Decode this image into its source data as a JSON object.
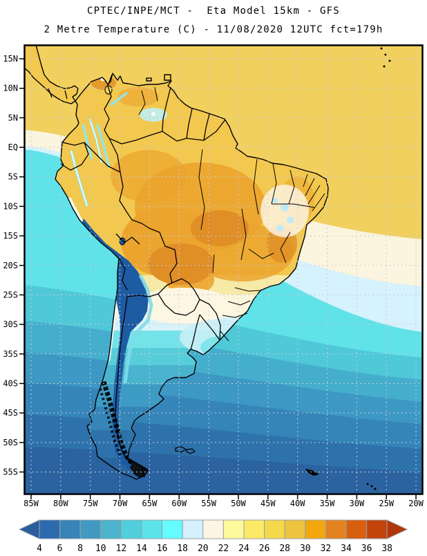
{
  "header": {
    "line1": "CPTEC/INPE/MCT -  Eta Model 15km - GFS",
    "line2": "2 Metre Temperature (C) - 11/08/2020 12UTC fct=179h"
  },
  "axes": {
    "lat_labels": [
      "15N",
      "10N",
      "5N",
      "EQ",
      "5S",
      "10S",
      "15S",
      "20S",
      "25S",
      "30S",
      "35S",
      "40S",
      "45S",
      "50S",
      "55S"
    ],
    "lon_labels": [
      "85W",
      "80W",
      "75W",
      "70W",
      "65W",
      "60W",
      "55W",
      "50W",
      "45W",
      "40W",
      "35W",
      "30W",
      "25W",
      "20W"
    ]
  },
  "colorbar": {
    "units": "C",
    "tick_labels": [
      "4",
      "6",
      "8",
      "10",
      "12",
      "14",
      "16",
      "18",
      "20",
      "22",
      "24",
      "26",
      "28",
      "30",
      "32",
      "34",
      "36",
      "38"
    ],
    "segment_colors": [
      "#2d6aad",
      "#3784b8",
      "#429ac2",
      "#4cb4cc",
      "#52cfdd",
      "#5ce3ea",
      "#66fbff",
      "#d4f1fd",
      "#fdf5e3",
      "#fdfa9d",
      "#fbe968",
      "#f5d94d",
      "#eec33e",
      "#f2a80d",
      "#e2831f",
      "#d85f10",
      "#c2440a"
    ],
    "left_arrow_color": "#2a5d9c",
    "right_arrow_color": "#b03808",
    "cell_border": "#9aa0a6"
  },
  "colors": {
    "ocean_bands": [
      "#f1d05e",
      "#fbf4de",
      "#d6f2fc",
      "#5fe2e8",
      "#4fc8d8",
      "#45aecd",
      "#3d98c3",
      "#3585b8",
      "#2e72ab",
      "#2a639f"
    ],
    "land_bands": [
      "#f3c84e",
      "#f7e9a6",
      "#fbf5dd",
      "#d9f3f8",
      "#74e3e9",
      "#58cdda",
      "#4ab4cf",
      "#3e9bc4",
      "#3585b7",
      "#2e72ab",
      "#2a64a1"
    ],
    "land_orange": "#eba42e",
    "land_orange_deep": "#e08e26",
    "andes_dark": "#1d5ba2",
    "andes_fringe": "#7fdce8",
    "snow_white": "#f2fbfb",
    "mountain_cyan": "#8fe8ee",
    "highland_cyan": "#bff0f4",
    "cold_cream": "#fcf6e2",
    "cold_pale_cyan": "#c9eef6",
    "cold_cyan": "#79e2ea",
    "ne_cream": "#fdf3e0",
    "ne_cyan": "#bfeaf8",
    "island_blue": "#2d6ca6",
    "lake_gold": "#f2cf5a",
    "grid": "#c9cbd4",
    "frame": "#000000"
  }
}
